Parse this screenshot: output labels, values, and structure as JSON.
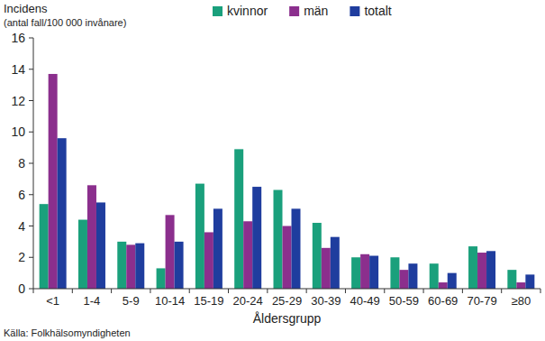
{
  "chart_data": {
    "type": "bar",
    "title": "Incidens",
    "subtitle": "(antal fall/100 000 invånare)",
    "x_label": "Åldersgrupp",
    "source": "Källa: Folkhälsomyndigheten",
    "categories": [
      "<1",
      "1-4",
      "5-9",
      "10-14",
      "15-19",
      "20-24",
      "25-29",
      "30-39",
      "40-49",
      "50-59",
      "60-69",
      "70-79",
      "≥80"
    ],
    "series": [
      {
        "name": "kvinnor",
        "color": "#1aa07c",
        "values": [
          5.4,
          4.4,
          3.0,
          1.3,
          6.7,
          8.9,
          6.3,
          4.2,
          2.0,
          2.0,
          1.6,
          2.7,
          1.2
        ]
      },
      {
        "name": "män",
        "color": "#8b2f8d",
        "values": [
          13.7,
          6.6,
          2.8,
          4.7,
          3.6,
          4.3,
          4.0,
          2.6,
          2.2,
          1.2,
          0.4,
          2.3,
          0.4
        ]
      },
      {
        "name": "totalt",
        "color": "#1f3d9e",
        "values": [
          9.6,
          5.5,
          2.9,
          3.0,
          5.1,
          6.5,
          5.1,
          3.3,
          2.1,
          1.6,
          1.0,
          2.4,
          0.9
        ]
      }
    ],
    "ylim": [
      0,
      16
    ],
    "yticks": [
      0,
      2,
      4,
      6,
      8,
      10,
      12,
      14,
      16
    ],
    "grid": false,
    "legend": "top"
  }
}
